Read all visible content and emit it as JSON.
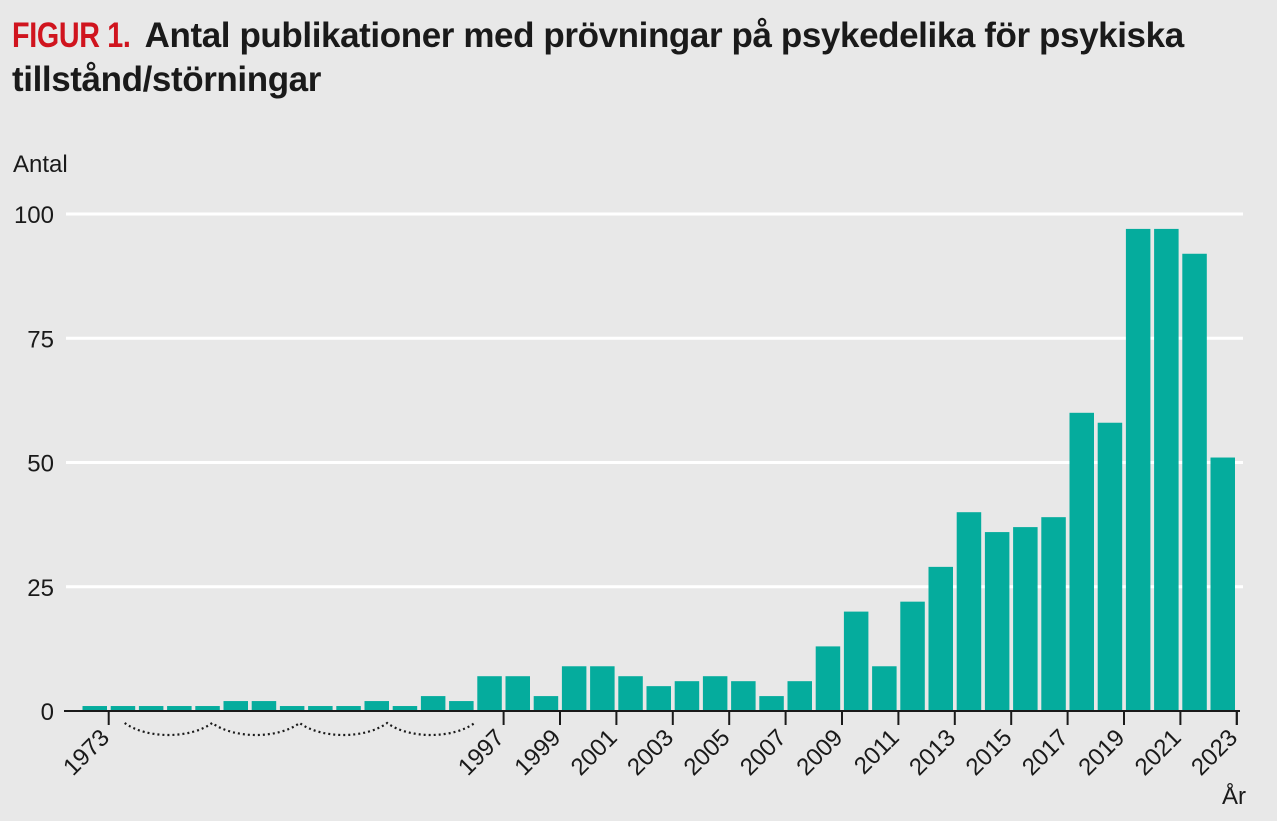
{
  "figure_label": "FIGUR 1.",
  "title": "Antal publikationer med prövningar på psykedelika för psykiska tillstånd/störningar",
  "chart_data": {
    "type": "bar",
    "ylabel": "Antal",
    "xlabel": "År",
    "ylim": [
      0,
      100
    ],
    "yticks": [
      0,
      25,
      50,
      75,
      100
    ],
    "grid": true,
    "bar_color": "#05ac9d",
    "axis_break": true,
    "x_tick_labels": [
      "1973",
      "1997",
      "1999",
      "2001",
      "2003",
      "2005",
      "2007",
      "2009",
      "2011",
      "2013",
      "2015",
      "2017",
      "2019",
      "2021",
      "2023"
    ],
    "values": [
      1,
      1,
      1,
      1,
      1,
      2,
      2,
      1,
      1,
      1,
      2,
      1,
      3,
      2,
      7,
      7,
      3,
      9,
      9,
      7,
      5,
      6,
      7,
      6,
      3,
      6,
      13,
      20,
      9,
      22,
      29,
      40,
      36,
      37,
      39,
      60,
      58,
      97,
      97,
      92,
      51
    ]
  }
}
